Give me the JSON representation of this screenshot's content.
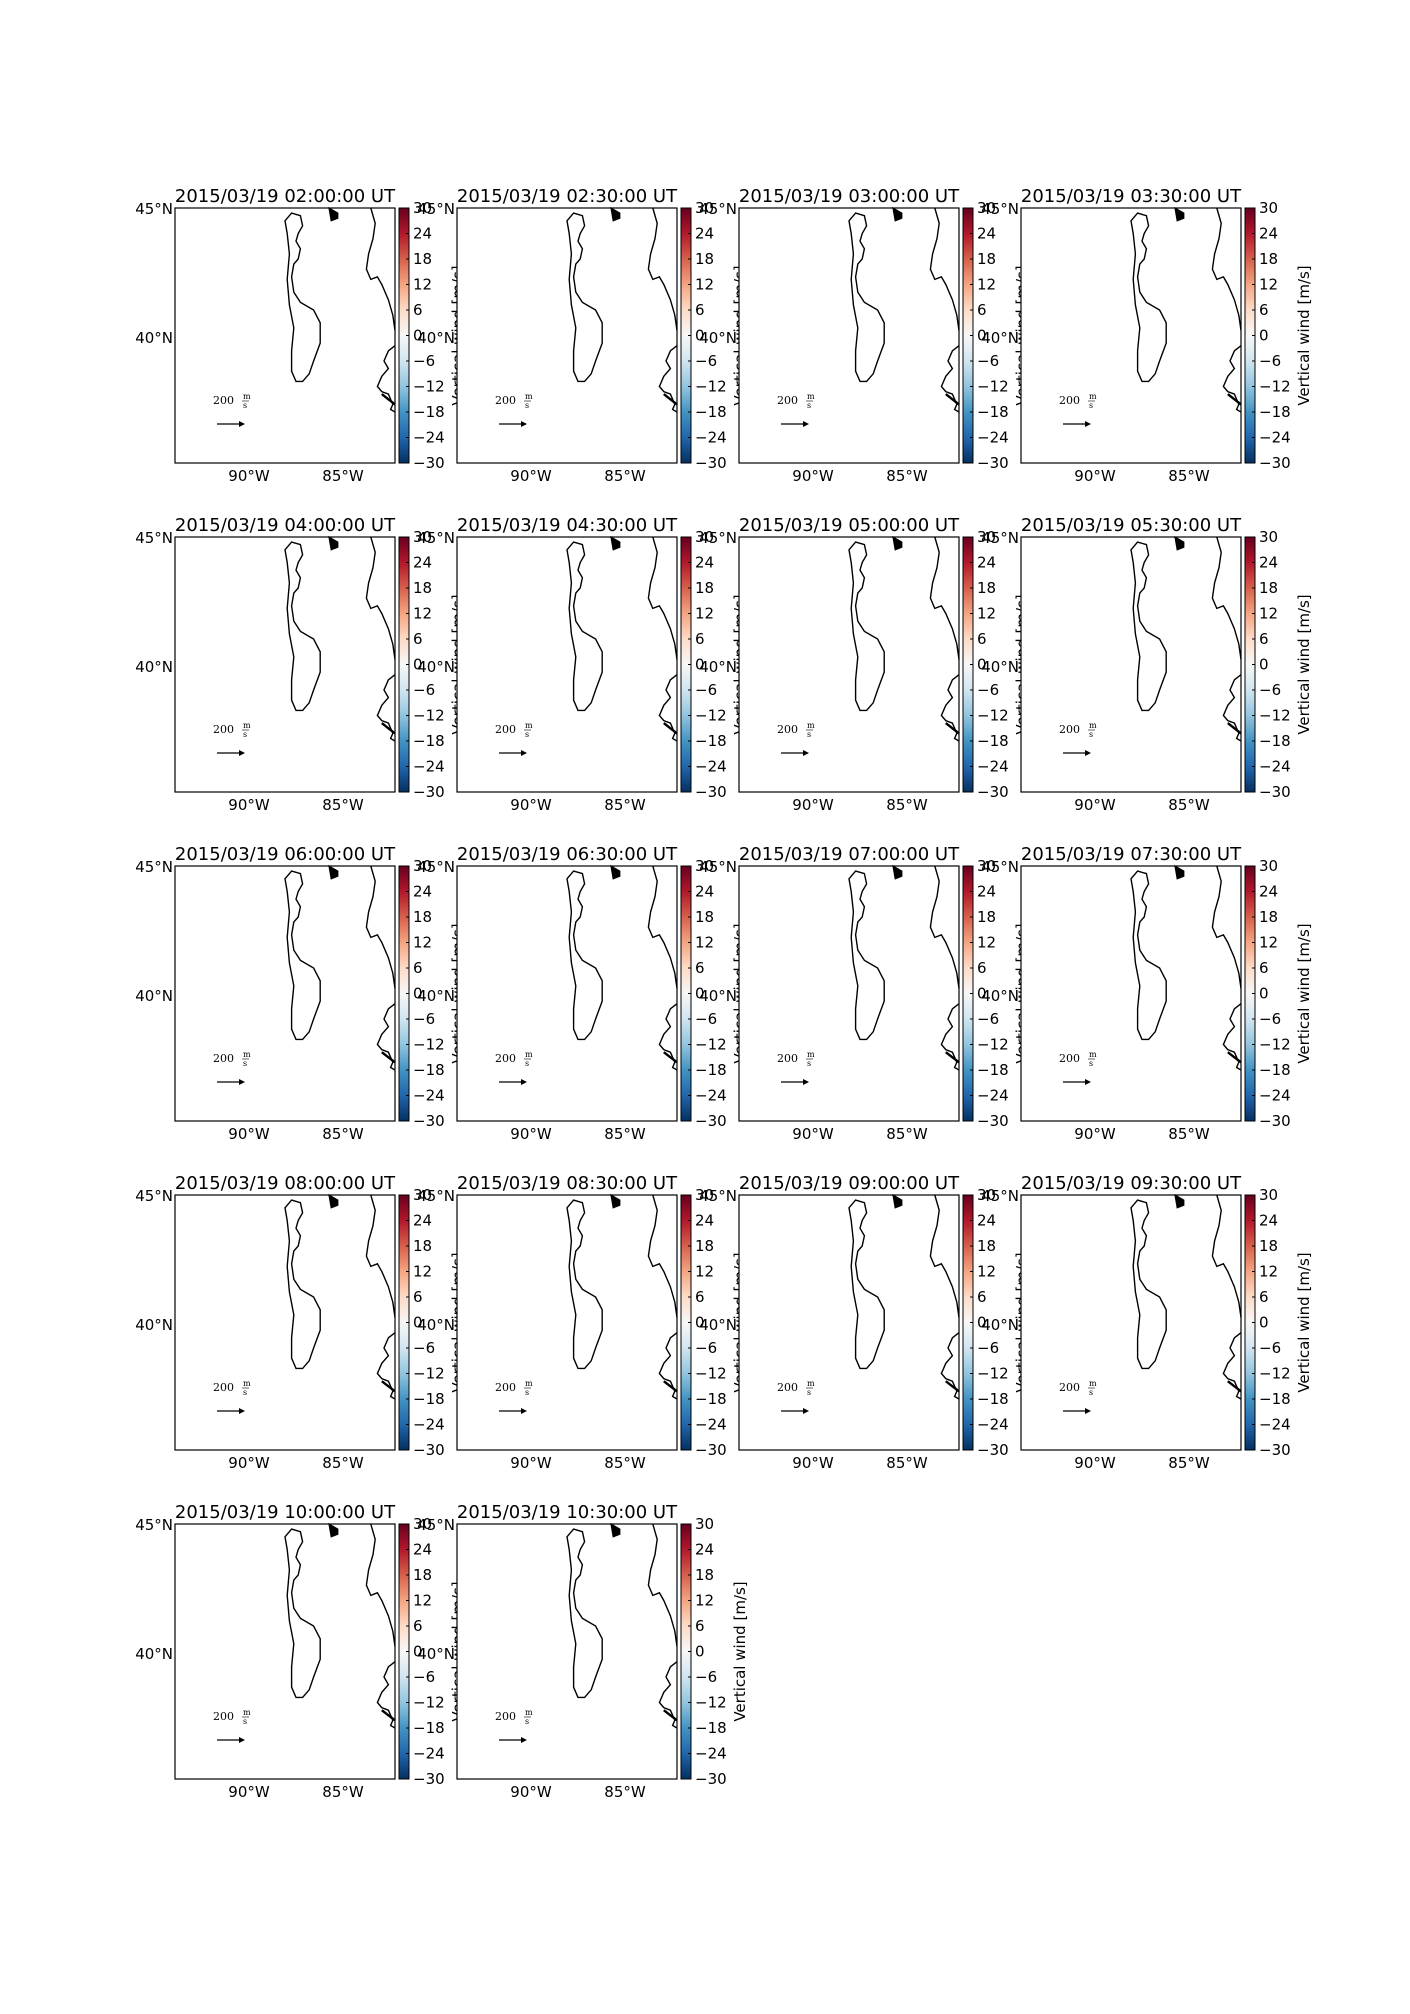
{
  "figure": {
    "colorbar_label": "Vertical wind [m/s]",
    "colormap": [
      "#053061",
      "#2166ac",
      "#4393c3",
      "#92c5de",
      "#d1e5f0",
      "#f7f7f7",
      "#fddbc7",
      "#f4a582",
      "#d6604d",
      "#b2182b",
      "#67001f"
    ],
    "colorbar_ticks": [
      "30",
      "24",
      "18",
      "12",
      "6",
      "0",
      "−6",
      "−12",
      "−18",
      "−24",
      "−30"
    ],
    "lat_labels": [
      "45°N",
      "40°N"
    ],
    "lon_labels": [
      "90°W",
      "85°W"
    ],
    "quiver_key": {
      "value": "200",
      "unit_num": "m",
      "unit_den": "s"
    },
    "panels": [
      {
        "title": "2015/03/19 02:00:00 UT"
      },
      {
        "title": "2015/03/19 02:30:00 UT"
      },
      {
        "title": "2015/03/19 03:00:00 UT"
      },
      {
        "title": "2015/03/19 03:30:00 UT"
      },
      {
        "title": "2015/03/19 04:00:00 UT"
      },
      {
        "title": "2015/03/19 04:30:00 UT"
      },
      {
        "title": "2015/03/19 05:00:00 UT"
      },
      {
        "title": "2015/03/19 05:30:00 UT"
      },
      {
        "title": "2015/03/19 06:00:00 UT"
      },
      {
        "title": "2015/03/19 06:30:00 UT"
      },
      {
        "title": "2015/03/19 07:00:00 UT"
      },
      {
        "title": "2015/03/19 07:30:00 UT"
      },
      {
        "title": "2015/03/19 08:00:00 UT"
      },
      {
        "title": "2015/03/19 08:30:00 UT"
      },
      {
        "title": "2015/03/19 09:00:00 UT"
      },
      {
        "title": "2015/03/19 09:30:00 UT"
      },
      {
        "title": "2015/03/19 10:00:00 UT"
      },
      {
        "title": "2015/03/19 10:30:00 UT"
      }
    ]
  }
}
